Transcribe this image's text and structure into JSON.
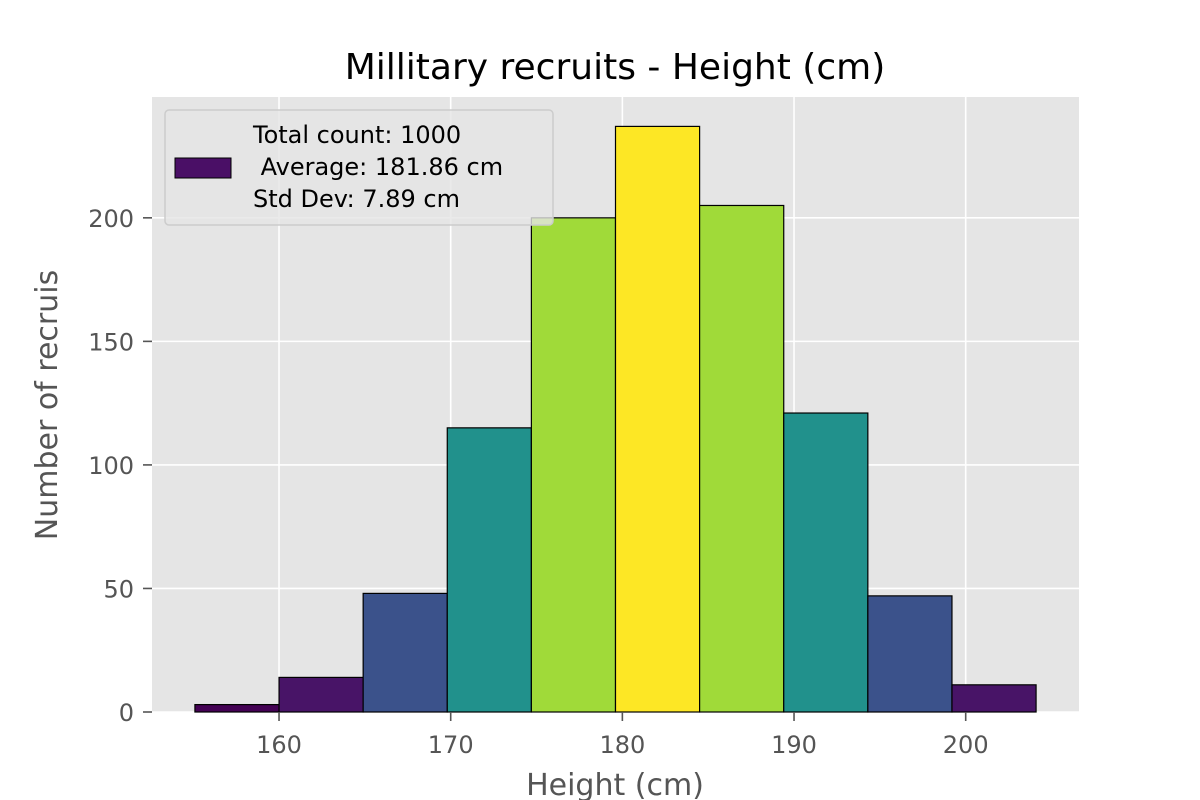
{
  "chart_data": {
    "type": "bar",
    "title": "Millitary recruits - Height (cm)",
    "xlabel": "Height (cm)",
    "ylabel": "Number of recruis",
    "bin_edges": [
      155.1,
      160.0,
      164.9,
      169.8,
      174.7,
      179.6,
      184.5,
      189.4,
      194.3,
      199.2,
      204.1
    ],
    "values": [
      3,
      14,
      48,
      115,
      200,
      237,
      205,
      121,
      47,
      11
    ],
    "bar_colors": [
      "#440154",
      "#481467",
      "#3b528b",
      "#21918c",
      "#a0da39",
      "#fde725",
      "#a0da39",
      "#21918c",
      "#3b528b",
      "#481467"
    ],
    "xlim": [
      152.6,
      206.6
    ],
    "ylim": [
      0,
      248.9
    ],
    "xticks": [
      160,
      170,
      180,
      190,
      200
    ],
    "yticks": [
      0,
      50,
      100,
      150,
      200
    ],
    "grid": true,
    "legend": {
      "placement": "upper left",
      "swatch_color": "#4a0f66",
      "lines": [
        "Total count: 1000",
        " Average: 181.86 cm",
        "Std Dev: 7.89 cm"
      ]
    },
    "colors": {
      "plot_background": "#e5e5e5",
      "grid": "#ffffff",
      "bar_edge": "#000000"
    }
  }
}
